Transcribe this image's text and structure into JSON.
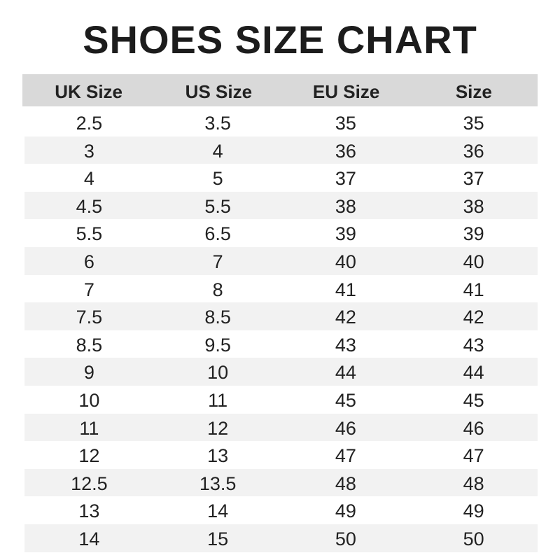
{
  "title": "SHOES SIZE CHART",
  "headers": [
    "UK Size",
    "US Size",
    "EU Size",
    "Size"
  ],
  "rows": [
    [
      "2.5",
      "3.5",
      "35",
      "35"
    ],
    [
      "3",
      "4",
      "36",
      "36"
    ],
    [
      "4",
      "5",
      "37",
      "37"
    ],
    [
      "4.5",
      "5.5",
      "38",
      "38"
    ],
    [
      "5.5",
      "6.5",
      "39",
      "39"
    ],
    [
      "6",
      "7",
      "40",
      "40"
    ],
    [
      "7",
      "8",
      "41",
      "41"
    ],
    [
      "7.5",
      "8.5",
      "42",
      "42"
    ],
    [
      "8.5",
      "9.5",
      "43",
      "43"
    ],
    [
      "9",
      "10",
      "44",
      "44"
    ],
    [
      "10",
      "11",
      "45",
      "45"
    ],
    [
      "11",
      "12",
      "46",
      "46"
    ],
    [
      "12",
      "13",
      "47",
      "47"
    ],
    [
      "12.5",
      "13.5",
      "48",
      "48"
    ],
    [
      "13",
      "14",
      "49",
      "49"
    ],
    [
      "14",
      "15",
      "50",
      "50"
    ]
  ],
  "colors": {
    "header_bg": "#d9d9d9",
    "stripe_bg": "#f2f2f2",
    "text": "#222222"
  }
}
